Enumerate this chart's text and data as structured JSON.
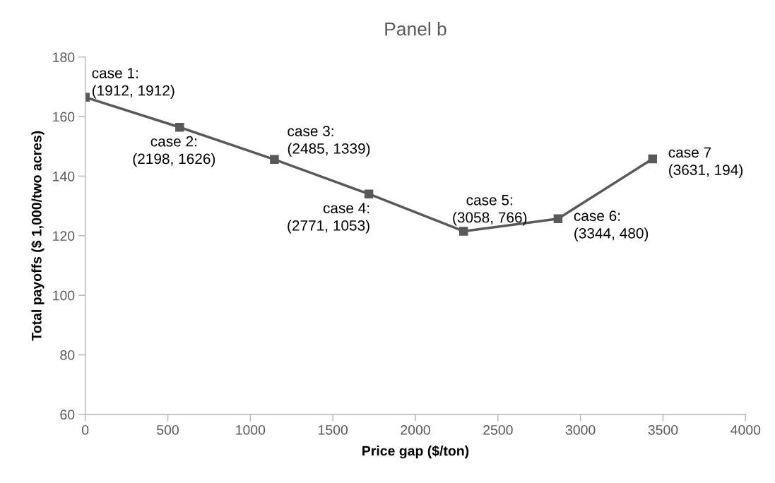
{
  "chart_data": {
    "type": "line",
    "title": "Panel b",
    "xlabel": "Price gap ($/ton)",
    "ylabel": "Total payoffs ($ 1,000/two acres)",
    "x": [
      0,
      572,
      1146,
      1718,
      2292,
      2864,
      3437
    ],
    "series": [
      {
        "color": "#595959",
        "values": [
          166.5,
          156.4,
          145.6,
          134.0,
          121.5,
          125.7,
          145.8
        ]
      }
    ],
    "marker": "square",
    "line_style": "solid",
    "grid": false,
    "legend": false,
    "xlim": [
      0,
      4000
    ],
    "xticks": [
      0,
      500,
      1000,
      1500,
      2000,
      2500,
      3000,
      3500,
      4000
    ],
    "ylim": [
      60,
      180
    ],
    "yticks": [
      60,
      80,
      100,
      120,
      140,
      160,
      180
    ],
    "annotations": [
      {
        "text": "case 1:\n(1912, 1912)",
        "x": 0,
        "y": 166.5
      },
      {
        "text": "case 2:\n(2198, 1626)",
        "x": 572,
        "y": 156.4
      },
      {
        "text": "case 3:\n(2485, 1339)",
        "x": 1146,
        "y": 145.6
      },
      {
        "text": "case 4:\n(2771, 1053)",
        "x": 1718,
        "y": 134.0
      },
      {
        "text": "case 5:\n(3058, 766)",
        "x": 2292,
        "y": 121.5
      },
      {
        "text": "case 6:\n(3344, 480)",
        "x": 2864,
        "y": 125.7
      },
      {
        "text": "case 7\n(3631, 194)",
        "x": 3437,
        "y": 145.8
      }
    ]
  }
}
